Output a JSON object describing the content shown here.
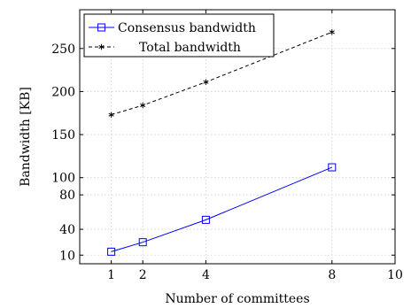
{
  "chart_data": {
    "type": "line",
    "title": "",
    "xlabel": "Number of committees",
    "ylabel": "Bandwidth [KB]",
    "xlim": [
      0,
      10
    ],
    "ylim": [
      0,
      295
    ],
    "xticks": [
      "1",
      "2",
      "4",
      "8",
      "10"
    ],
    "xtick_values": [
      1,
      2,
      4,
      8,
      10
    ],
    "yticks": [
      "10",
      "40",
      "80",
      "100",
      "150",
      "200",
      "250"
    ],
    "ytick_values": [
      10,
      40,
      80,
      100,
      150,
      200,
      250
    ],
    "grid": true,
    "legend_position": "top-left",
    "series": [
      {
        "name": "Consensus bandwidth",
        "color": "#0000ff",
        "line_style": "solid",
        "marker": "square",
        "x": [
          1,
          2,
          4,
          8
        ],
        "y": [
          14,
          25,
          51,
          112
        ]
      },
      {
        "name": "Total bandwidth",
        "color": "#000000",
        "line_style": "dashed",
        "marker": "star",
        "x": [
          1,
          2,
          4,
          8
        ],
        "y": [
          173,
          184,
          211,
          269
        ]
      }
    ]
  }
}
